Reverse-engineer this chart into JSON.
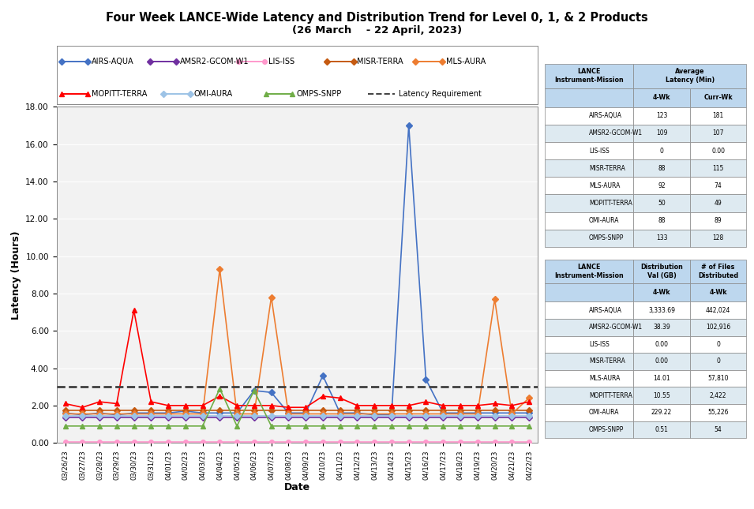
{
  "title_line1": "Four Week LANCE-Wide Latency and Distribution Trend for Level 0, 1, & 2 Products",
  "title_line2": "(26 March    - 22 April, 2023)",
  "xlabel": "Date",
  "ylabel": "Latency (Hours)",
  "ylim": [
    0,
    18.0
  ],
  "yticks": [
    0.0,
    2.0,
    4.0,
    6.0,
    8.0,
    10.0,
    12.0,
    14.0,
    16.0,
    18.0
  ],
  "latency_req": 3.0,
  "dates": [
    "03/26/23",
    "03/27/23",
    "03/28/23",
    "03/29/23",
    "03/30/23",
    "03/31/23",
    "04/01/23",
    "04/02/23",
    "04/03/23",
    "04/04/23",
    "04/05/23",
    "04/06/23",
    "04/07/23",
    "04/08/23",
    "04/09/23",
    "04/10/23",
    "04/11/23",
    "04/12/23",
    "04/13/23",
    "04/14/23",
    "04/15/23",
    "04/16/23",
    "04/17/23",
    "04/18/23",
    "04/19/23",
    "04/20/23",
    "04/21/23",
    "04/22/23"
  ],
  "series": [
    {
      "name": "AIRS-AQUA",
      "color": "#4472C4",
      "marker": "D",
      "markersize": 4,
      "linewidth": 1.2,
      "values": [
        1.6,
        1.5,
        1.6,
        1.5,
        1.6,
        1.6,
        1.6,
        1.7,
        1.6,
        1.6,
        1.6,
        2.8,
        2.7,
        1.6,
        1.6,
        3.6,
        1.6,
        1.6,
        1.5,
        1.5,
        17.0,
        3.4,
        1.6,
        1.6,
        1.6,
        1.6,
        1.6,
        1.6
      ]
    },
    {
      "name": "AMSR2-GCOM-W1",
      "color": "#7030A0",
      "marker": "D",
      "markersize": 4,
      "linewidth": 1.2,
      "values": [
        1.35,
        1.35,
        1.35,
        1.35,
        1.35,
        1.35,
        1.35,
        1.35,
        1.35,
        1.35,
        1.35,
        1.35,
        1.35,
        1.35,
        1.35,
        1.35,
        1.35,
        1.35,
        1.35,
        1.35,
        1.35,
        1.35,
        1.35,
        1.35,
        1.35,
        1.35,
        1.35,
        1.35
      ]
    },
    {
      "name": "LIS-ISS",
      "color": "#FF99CC",
      "marker": "o",
      "markersize": 4,
      "linewidth": 1.2,
      "values": [
        0.05,
        0.05,
        0.05,
        0.05,
        0.05,
        0.05,
        0.05,
        0.05,
        0.05,
        0.05,
        0.05,
        0.05,
        0.05,
        0.05,
        0.05,
        0.05,
        0.05,
        0.05,
        0.05,
        0.05,
        0.05,
        0.05,
        0.05,
        0.05,
        0.05,
        0.05,
        0.05,
        0.05
      ]
    },
    {
      "name": "MISR-TERRA",
      "color": "#C55A11",
      "marker": "D",
      "markersize": 4,
      "linewidth": 1.2,
      "values": [
        1.75,
        1.75,
        1.75,
        1.75,
        1.75,
        1.75,
        1.75,
        1.75,
        1.75,
        1.75,
        1.75,
        1.75,
        1.75,
        1.75,
        1.75,
        1.75,
        1.75,
        1.75,
        1.75,
        1.75,
        1.75,
        1.75,
        1.75,
        1.75,
        1.75,
        1.75,
        1.75,
        1.75
      ]
    },
    {
      "name": "MLS-AURA",
      "color": "#ED7D31",
      "marker": "D",
      "markersize": 4,
      "linewidth": 1.2,
      "values": [
        1.55,
        1.55,
        1.55,
        1.55,
        1.55,
        1.55,
        1.55,
        1.55,
        1.55,
        9.3,
        1.55,
        1.55,
        7.8,
        1.55,
        1.55,
        1.55,
        1.55,
        1.55,
        1.55,
        1.55,
        1.55,
        1.55,
        1.55,
        1.55,
        1.55,
        7.7,
        1.55,
        2.4
      ]
    },
    {
      "name": "MOPITT-TERRA",
      "color": "#FF0000",
      "marker": "^",
      "markersize": 5,
      "linewidth": 1.2,
      "values": [
        2.1,
        1.9,
        2.2,
        2.1,
        7.1,
        2.2,
        2.0,
        2.0,
        2.0,
        2.5,
        2.0,
        2.0,
        2.0,
        1.9,
        1.9,
        2.5,
        2.4,
        2.0,
        2.0,
        2.0,
        2.0,
        2.2,
        2.0,
        2.0,
        2.0,
        2.1,
        2.0,
        2.2
      ]
    },
    {
      "name": "OMI-AURA",
      "color": "#9DC3E6",
      "marker": "D",
      "markersize": 4,
      "linewidth": 1.2,
      "values": [
        1.45,
        1.45,
        1.45,
        1.45,
        1.45,
        1.45,
        1.45,
        1.45,
        1.45,
        1.45,
        1.45,
        1.45,
        1.45,
        1.45,
        1.45,
        1.45,
        1.45,
        1.45,
        1.45,
        1.45,
        1.45,
        1.45,
        1.45,
        1.45,
        1.45,
        1.45,
        1.45,
        1.45
      ]
    },
    {
      "name": "OMPS-SNPP",
      "color": "#70AD47",
      "marker": "^",
      "markersize": 5,
      "linewidth": 1.2,
      "values": [
        0.9,
        0.9,
        0.9,
        0.9,
        0.9,
        0.9,
        0.9,
        0.9,
        0.9,
        2.9,
        0.9,
        2.8,
        0.9,
        0.9,
        0.9,
        0.9,
        0.9,
        0.9,
        0.9,
        0.9,
        0.9,
        0.9,
        0.9,
        0.9,
        0.9,
        0.9,
        0.9,
        0.9
      ]
    }
  ],
  "legend_items": [
    {
      "label": "AIRS-AQUA",
      "color": "#4472C4",
      "marker": "D",
      "linestyle": "-",
      "row": 0
    },
    {
      "label": "AMSR2-GCOM-W1",
      "color": "#7030A0",
      "marker": "D",
      "linestyle": "-",
      "row": 0
    },
    {
      "label": "LIS-ISS",
      "color": "#FF99CC",
      "marker": "o",
      "linestyle": "-",
      "row": 0
    },
    {
      "label": "MISR-TERRA",
      "color": "#C55A11",
      "marker": "D",
      "linestyle": "-",
      "row": 0
    },
    {
      "label": "MLS-AURA",
      "color": "#ED7D31",
      "marker": "D",
      "linestyle": "-",
      "row": 0
    },
    {
      "label": "MOPITT-TERRA",
      "color": "#FF0000",
      "marker": "^",
      "linestyle": "-",
      "row": 1
    },
    {
      "label": "OMI-AURA",
      "color": "#9DC3E6",
      "marker": "D",
      "linestyle": "-",
      "row": 1
    },
    {
      "label": "OMPS-SNPP",
      "color": "#70AD47",
      "marker": "^",
      "linestyle": "-",
      "row": 1
    },
    {
      "label": "Latency Requirement",
      "color": "#404040",
      "marker": "",
      "linestyle": "--",
      "row": 1
    }
  ],
  "table1_rows": [
    [
      "AIRS-AQUA",
      "123",
      "181"
    ],
    [
      "AMSR2-GCOM-W1",
      "109",
      "107"
    ],
    [
      "LIS-ISS",
      "0",
      "0.00"
    ],
    [
      "MISR-TERRA",
      "88",
      "115"
    ],
    [
      "MLS-AURA",
      "92",
      "74"
    ],
    [
      "MOPITT-TERRA",
      "50",
      "49"
    ],
    [
      "OMI-AURA",
      "88",
      "89"
    ],
    [
      "OMPS-SNPP",
      "133",
      "128"
    ]
  ],
  "table2_rows": [
    [
      "AIRS-AQUA",
      "3,333.69",
      "442,024"
    ],
    [
      "AMSR2-GCOM-W1",
      "38.39",
      "102,916"
    ],
    [
      "LIS-ISS",
      "0.00",
      "0"
    ],
    [
      "MISR-TERRA",
      "0.00",
      "0"
    ],
    [
      "MLS-AURA",
      "14.01",
      "57,810"
    ],
    [
      "MOPITT-TERRA",
      "10.55",
      "2,422"
    ],
    [
      "OMI-AURA",
      "229.22",
      "55,226"
    ],
    [
      "OMPS-SNPP",
      "0.51",
      "54"
    ]
  ],
  "header_color": "#BDD7EE",
  "row_alt_color": "#DEEAF1",
  "plot_bg": "#F2F2F2",
  "grid_color": "#FFFFFF"
}
